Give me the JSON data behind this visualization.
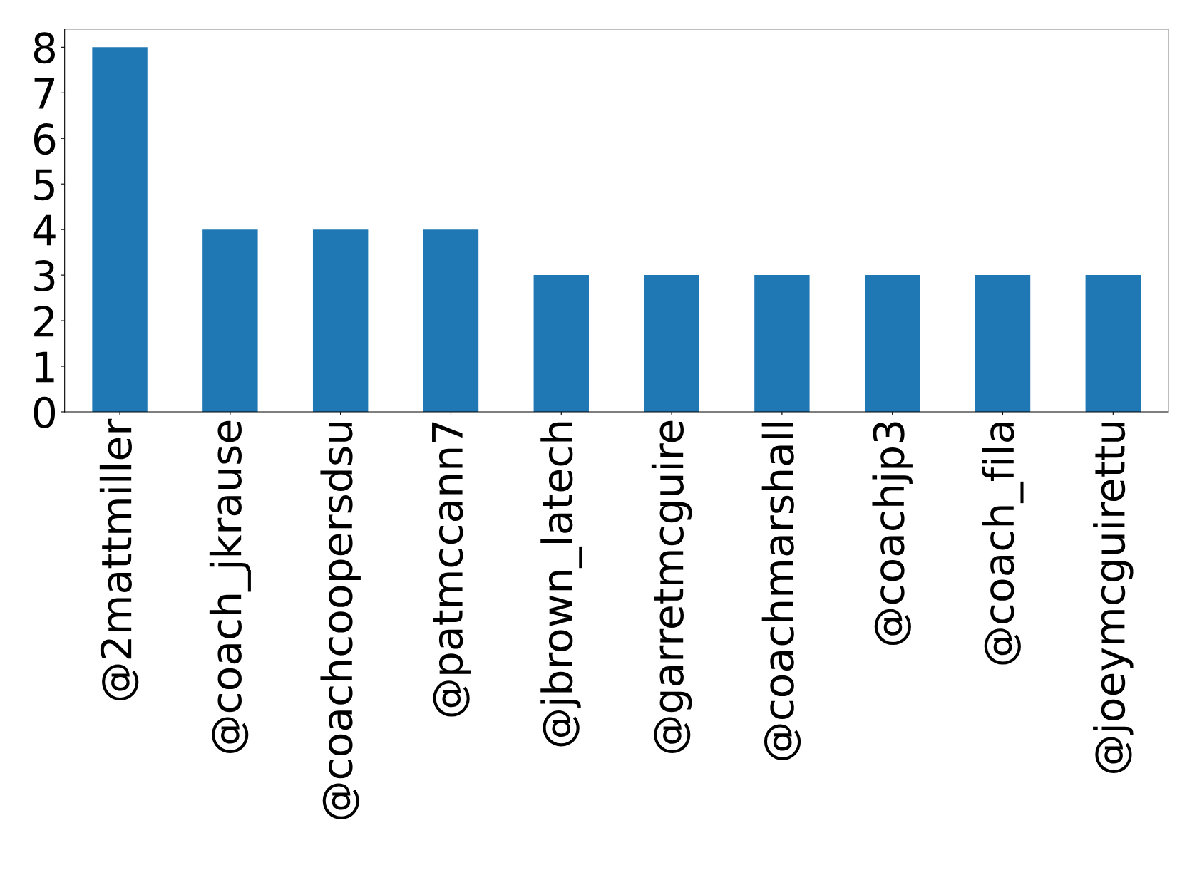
{
  "chart_data": {
    "type": "bar",
    "categories": [
      "@2mattmiller",
      "@coach_jkrause",
      "@coachcoopersdsu",
      "@patmccann7",
      "@jbrown_latech",
      "@garretmcguire",
      "@coachmarshall",
      "@coachjp3",
      "@coach_fila",
      "@joeymcguirettu"
    ],
    "values": [
      8,
      4,
      4,
      4,
      3,
      3,
      3,
      3,
      3,
      3
    ],
    "color": "#1f77b4",
    "ylim": [
      0,
      8.4
    ],
    "yticks": [
      0,
      1,
      2,
      3,
      4,
      5,
      6,
      7,
      8
    ],
    "grid": false,
    "legend": false
  }
}
